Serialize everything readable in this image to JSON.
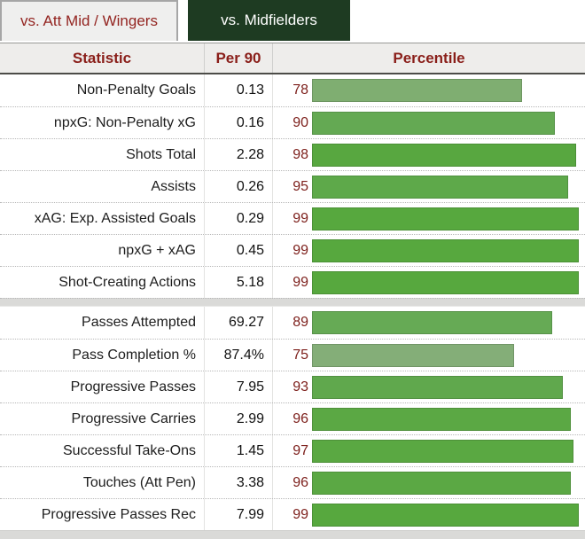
{
  "tabs": [
    {
      "label": "vs. Att Mid / Wingers",
      "active": false
    },
    {
      "label": "vs. Midfielders",
      "active": true
    }
  ],
  "table": {
    "headers": {
      "statistic": "Statistic",
      "per90": "Per 90",
      "percentile": "Percentile"
    },
    "sections": [
      {
        "rows": [
          {
            "stat": "Non-Penalty Goals",
            "per90": "0.13",
            "percentile": 78,
            "color": "#7fae71"
          },
          {
            "stat": "npxG: Non-Penalty xG",
            "per90": "0.16",
            "percentile": 90,
            "color": "#64a953"
          },
          {
            "stat": "Shots Total",
            "per90": "2.28",
            "percentile": 98,
            "color": "#58a740"
          },
          {
            "stat": "Assists",
            "per90": "0.26",
            "percentile": 95,
            "color": "#5ea94a"
          },
          {
            "stat": "xAG: Exp. Assisted Goals",
            "per90": "0.29",
            "percentile": 99,
            "color": "#57a83e"
          },
          {
            "stat": "npxG + xAG",
            "per90": "0.45",
            "percentile": 99,
            "color": "#57a83e"
          },
          {
            "stat": "Shot-Creating Actions",
            "per90": "5.18",
            "percentile": 99,
            "color": "#57a83e"
          }
        ]
      },
      {
        "rows": [
          {
            "stat": "Passes Attempted",
            "per90": "69.27",
            "percentile": 89,
            "color": "#66aa55"
          },
          {
            "stat": "Pass Completion %",
            "per90": "87.4%",
            "percentile": 75,
            "color": "#84ae78"
          },
          {
            "stat": "Progressive Passes",
            "per90": "7.95",
            "percentile": 93,
            "color": "#60a84d"
          },
          {
            "stat": "Progressive Carries",
            "per90": "2.99",
            "percentile": 96,
            "color": "#5ba844"
          },
          {
            "stat": "Successful Take-Ons",
            "per90": "1.45",
            "percentile": 97,
            "color": "#5aa842"
          },
          {
            "stat": "Touches (Att Pen)",
            "per90": "3.38",
            "percentile": 96,
            "color": "#5ba844"
          },
          {
            "stat": "Progressive Passes Rec",
            "per90": "7.99",
            "percentile": 99,
            "color": "#57a83e"
          }
        ]
      }
    ]
  },
  "colors": {
    "active_tab_bg": "#1e3b22",
    "active_tab_text": "#ffffff",
    "inactive_tab_bg": "#efefee",
    "red_text": "#8a1f1a",
    "percentile_number_text": "#7e211d",
    "header_bg": "#eeedeb",
    "separator_band": "#dadad8"
  }
}
